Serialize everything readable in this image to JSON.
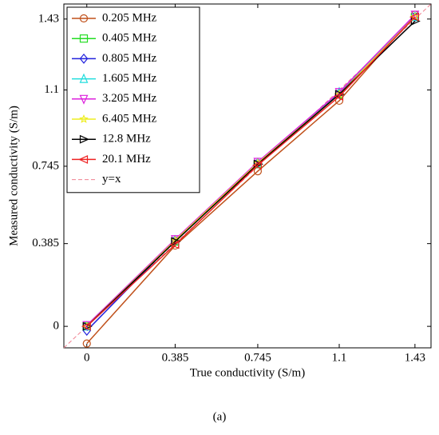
{
  "chart_data": {
    "type": "line",
    "xlabel": "True conductivity (S/m)",
    "ylabel": "Measured conductivity (S/m)",
    "caption": "(a)",
    "x": [
      0,
      0.385,
      0.745,
      1.1,
      1.43
    ],
    "series": [
      {
        "name": "0.205 MHz",
        "color": "#c0501a",
        "marker": "circle",
        "values": [
          -0.08,
          0.376,
          0.722,
          1.05,
          1.45
        ]
      },
      {
        "name": "0.405 MHz",
        "color": "#22dd22",
        "marker": "square",
        "values": [
          0.0,
          0.395,
          0.755,
          1.08,
          1.44
        ]
      },
      {
        "name": "0.805 MHz",
        "color": "#2222dd",
        "marker": "diamond",
        "values": [
          -0.02,
          0.4,
          0.76,
          1.085,
          1.44
        ]
      },
      {
        "name": "1.605 MHz",
        "color": "#22dddd",
        "marker": "triangle-up",
        "values": [
          0.0,
          0.4,
          0.76,
          1.09,
          1.44
        ]
      },
      {
        "name": "3.205 MHz",
        "color": "#dd22dd",
        "marker": "triangle-down",
        "values": [
          0.005,
          0.405,
          0.765,
          1.09,
          1.45
        ]
      },
      {
        "name": "6.405 MHz",
        "color": "#eeee22",
        "marker": "star",
        "values": [
          0.0,
          0.4,
          0.76,
          1.08,
          1.44
        ]
      },
      {
        "name": "12.8 MHz",
        "color": "#000000",
        "marker": "triangle-right",
        "values": [
          0.0,
          0.395,
          0.755,
          1.08,
          1.42
        ]
      },
      {
        "name": "20.1 MHz",
        "color": "#ee2222",
        "marker": "triangle-left",
        "values": [
          0.0,
          0.38,
          0.75,
          1.07,
          1.44
        ]
      }
    ],
    "reference_line": {
      "name": "y=x",
      "color": "#f08090"
    },
    "xlim": [
      -0.1,
      1.5
    ],
    "ylim": [
      -0.1,
      1.5
    ],
    "xticks": [
      0,
      0.385,
      0.745,
      1.1,
      1.43
    ],
    "yticks": [
      0,
      0.385,
      0.745,
      1.1,
      1.43
    ],
    "grid": false,
    "legend": "upper-left"
  }
}
